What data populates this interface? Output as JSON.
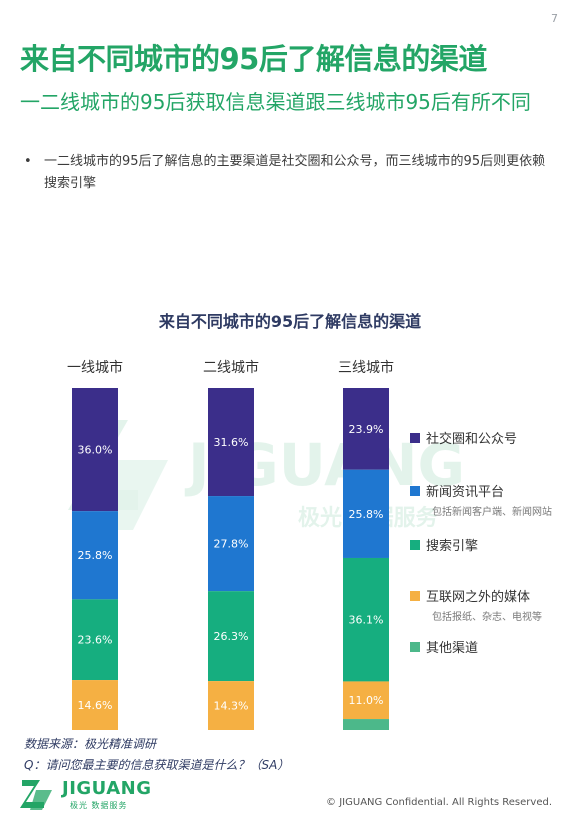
{
  "page_number": "7",
  "title": "来自不同城市的95后了解信息的渠道",
  "subtitle": "一二线城市的95后获取信息渠道跟三线城市95后有所不同",
  "bullet_marker": "•",
  "bullet": "一二线城市的95后了解信息的主要渠道是社交圈和公众号，而三线城市的95后则更依赖搜索引擎",
  "watermark": {
    "word": "JIGUANG",
    "sub": "极光 数据服务"
  },
  "source": {
    "line1": "数据来源：极光精准调研",
    "line2": "Q：请问您最主要的信息获取渠道是什么？（SA）"
  },
  "footer": {
    "logo_word": "JIGUANG",
    "logo_sub": "极光 数据服务",
    "copyright": "© JIGUANG  Confidential. All Rights Reserved."
  },
  "chart_data": {
    "type": "bar",
    "stacked": true,
    "orientation": "vertical",
    "title": "来自不同城市的95后了解信息的渠道",
    "categories": [
      "一线城市",
      "二线城市",
      "三线城市"
    ],
    "unit": "%",
    "ylim": [
      0,
      100
    ],
    "grid": false,
    "legend_position": "right",
    "series": [
      {
        "name": "社交圈和公众号",
        "note": "",
        "color": "#3b2e8a",
        "values": [
          36.0,
          31.6,
          23.9
        ],
        "labels": [
          "36.0%",
          "31.6%",
          "23.9%"
        ]
      },
      {
        "name": "新闻资讯平台",
        "note": "包括新闻客户端、新闻网站",
        "color": "#1f77d0",
        "values": [
          25.8,
          27.8,
          25.8
        ],
        "labels": [
          "25.8%",
          "27.8%",
          "25.8%"
        ]
      },
      {
        "name": "搜索引擎",
        "note": "",
        "color": "#16ae7f",
        "values": [
          23.6,
          26.3,
          36.1
        ],
        "labels": [
          "23.6%",
          "26.3%",
          "36.1%"
        ]
      },
      {
        "name": "互联网之外的媒体",
        "note": "包括报纸、杂志、电视等",
        "color": "#f5b043",
        "values": [
          14.6,
          14.3,
          11.0
        ],
        "labels": [
          "14.6%",
          "14.3%",
          "11.0%"
        ]
      },
      {
        "name": "其他渠道",
        "note": "",
        "color": "#4cb88a",
        "values": [
          0,
          0,
          3.2
        ],
        "labels": [
          "",
          "",
          ""
        ]
      }
    ]
  }
}
